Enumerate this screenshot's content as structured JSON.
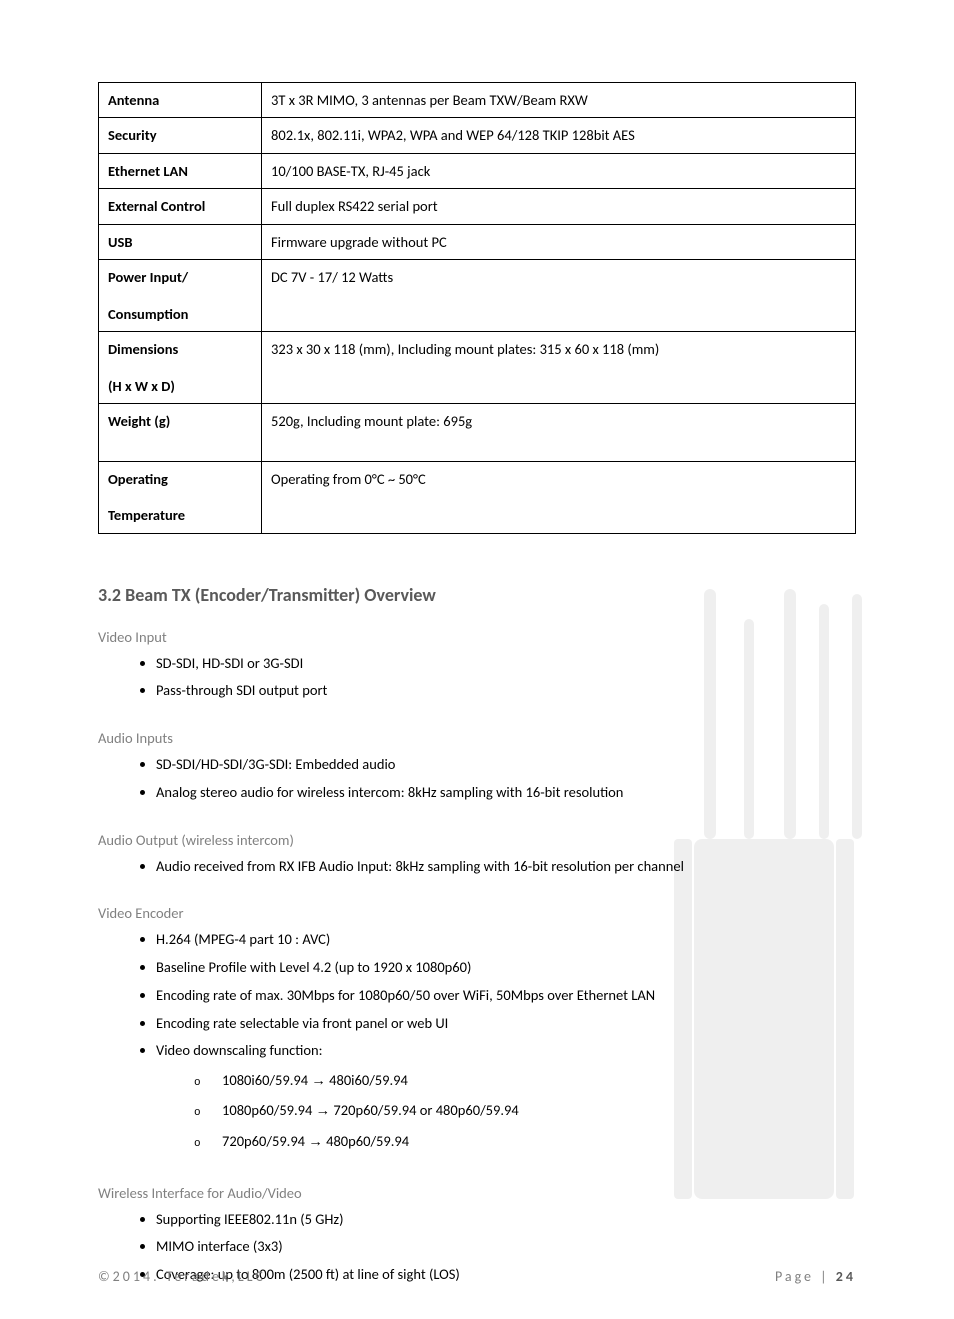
{
  "spec_table": {
    "rows": [
      {
        "key": "Antenna",
        "value": "3T x 3R MIMO, 3 antennas per Beam TXW/Beam RXW"
      },
      {
        "key": "Security",
        "value": "802.1x, 802.11i, WPA2, WPA and WEP 64/128 TKIP 128bit AES"
      },
      {
        "key": "Ethernet LAN",
        "value": "10/100 BASE-TX, RJ-45 jack"
      },
      {
        "key": "External Control",
        "value": "Full duplex RS422 serial port"
      },
      {
        "key": "USB",
        "value": "Firmware upgrade without PC"
      },
      {
        "key_line1": "Power Input/",
        "key_line2": "Consumption",
        "value": "DC 7V - 17/ 12 Watts"
      },
      {
        "key_line1": "Dimensions",
        "key_line2": "(H x W x D)",
        "value": "323 x 30 x 118 (mm), Including mount plates: 315 x 60 x 118 (mm)"
      },
      {
        "key": "Weight (g)",
        "value": "520g, Including mount plate: 695g",
        "tall": true
      },
      {
        "key_line1": "Operating",
        "key_line2": "Temperature",
        "value": "Operating from 0°C ~ 50°C"
      }
    ]
  },
  "section_heading": "3.2 Beam TX (Encoder/Transmitter) Overview",
  "groups": {
    "video_input": {
      "title": "Video Input",
      "items": [
        "SD-SDI, HD-SDI or 3G-SDI",
        "Pass-through SDI output port"
      ]
    },
    "audio_inputs": {
      "title": "Audio Inputs",
      "items": [
        "SD-SDI/HD-SDI/3G-SDI: Embedded audio",
        "Analog stereo audio for wireless intercom: 8kHz sampling with 16-bit resolution"
      ]
    },
    "audio_output": {
      "title": "Audio Output (wireless intercom)",
      "items": [
        "Audio received from RX IFB Audio Input: 8kHz sampling with 16-bit resolution per channel"
      ]
    },
    "video_encoder": {
      "title": "Video Encoder",
      "items": [
        "H.264 (MPEG-4 part 10 : AVC)",
        "Baseline Profile with Level 4.2 (up to 1920 x 1080p60)",
        "Encoding rate of max. 30Mbps for 1080p60/50 over WiFi, 50Mbps over Ethernet LAN",
        "Encoding rate selectable via front panel or web UI"
      ],
      "downscale_label": "Video downscaling function:",
      "downscale_items": [
        {
          "from": "1080i60/59.94",
          "to": "480i60/59.94"
        },
        {
          "from": "1080p60/59.94",
          "to": "720p60/59.94 or 480p60/59.94"
        },
        {
          "from": "720p60/59.94",
          "to": "480p60/59.94"
        }
      ]
    },
    "wireless": {
      "title": "Wireless Interface for Audio/Video",
      "items": [
        "Supporting IEEE802.11n (5 GHz)",
        "MIMO interface (3x3)",
        "Coverage:   up to 800m (2500 ft) at line of sight (LOS)"
      ]
    }
  },
  "footer": {
    "copyright": "©2014. Teradek,LLC",
    "page_label": "Page | ",
    "page_number": "24"
  }
}
